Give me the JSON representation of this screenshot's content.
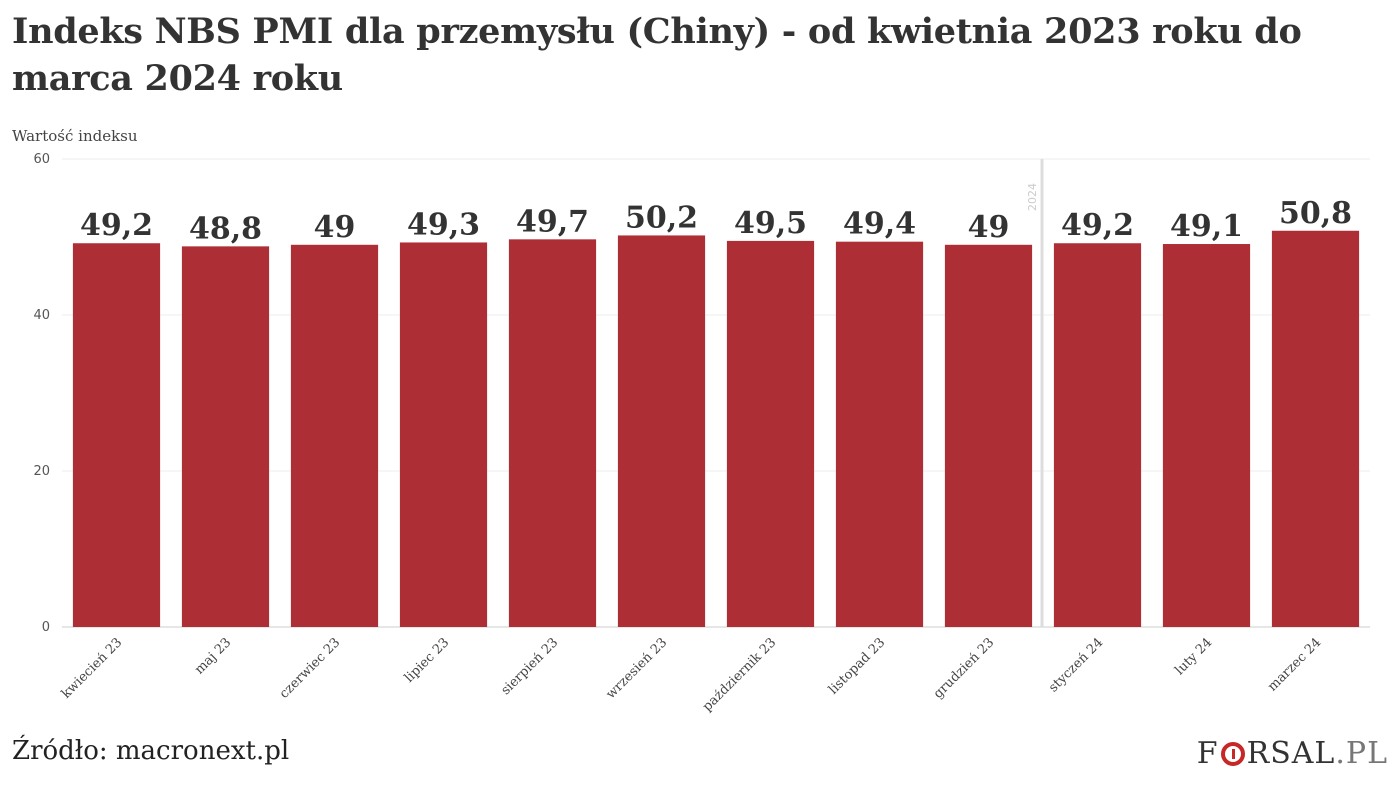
{
  "chart_data": {
    "type": "bar",
    "title": "Indeks NBS PMI dla przemysłu (Chiny) - od kwietnia 2023 roku do marca 2024 roku",
    "ylabel": "Wartość indeksu",
    "xlabel": "",
    "ylim": [
      0,
      60
    ],
    "yticks": [
      0,
      20,
      40,
      60
    ],
    "grid": true,
    "bar_color": "#ad2e35",
    "categories": [
      "kwiecień 23",
      "maj 23",
      "czerwiec 23",
      "lipiec 23",
      "sierpień 23",
      "wrzesień 23",
      "październik 23",
      "listopad 23",
      "grudzień 23",
      "styczeń 24",
      "luty 24",
      "marzec 24"
    ],
    "values": [
      49.2,
      48.8,
      49,
      49.3,
      49.7,
      50.2,
      49.5,
      49.4,
      49,
      49.2,
      49.1,
      50.8
    ],
    "value_labels": [
      "49,2",
      "48,8",
      "49",
      "49,3",
      "49,7",
      "50,2",
      "49,5",
      "49,4",
      "49",
      "49,2",
      "49,1",
      "50,8"
    ],
    "annotations": [
      {
        "text": "2024",
        "between": [
          "grudzień 23",
          "styczeń 24"
        ]
      }
    ]
  },
  "footer": {
    "source": "Źródło: macronext.pl",
    "logo_left": "F",
    "logo_right": "RSAL",
    "logo_suffix": ".PL"
  }
}
